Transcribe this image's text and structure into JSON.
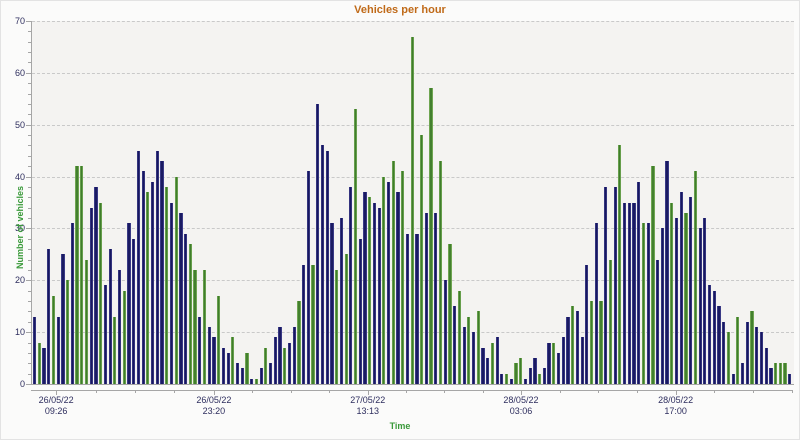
{
  "chart_data": {
    "type": "bar",
    "title": "Vehicles per hour",
    "xlabel": "Time",
    "ylabel": "Number of vehicles",
    "ylim": [
      0,
      70
    ],
    "grid": "horizontal-dashed",
    "legend": "none",
    "y_ticks": [
      0,
      10,
      20,
      30,
      40,
      50,
      60,
      70
    ],
    "y_minor_step": 2,
    "x_ticks": [
      {
        "pos": 0.033,
        "label_line1": "26/05/22",
        "label_line2": "09:26"
      },
      {
        "pos": 0.24,
        "label_line1": "26/05/22",
        "label_line2": "23:20"
      },
      {
        "pos": 0.442,
        "label_line1": "27/05/22",
        "label_line2": "13:13"
      },
      {
        "pos": 0.643,
        "label_line1": "28/05/22",
        "label_line2": "03:06"
      },
      {
        "pos": 0.846,
        "label_line1": "28/05/22",
        "label_line2": "17:00"
      }
    ],
    "series_legend": {
      "n": "navy bars",
      "g": "green bars"
    },
    "bars": [
      [
        13,
        "n"
      ],
      [
        8,
        "g"
      ],
      [
        7,
        "n"
      ],
      [
        26,
        "n"
      ],
      [
        17,
        "g"
      ],
      [
        13,
        "n"
      ],
      [
        25,
        "n"
      ],
      [
        20,
        "g"
      ],
      [
        31,
        "n"
      ],
      [
        42,
        "g"
      ],
      [
        42,
        "g"
      ],
      [
        24,
        "g"
      ],
      [
        34,
        "n"
      ],
      [
        38,
        "n"
      ],
      [
        35,
        "g"
      ],
      [
        19,
        "n"
      ],
      [
        26,
        "n"
      ],
      [
        13,
        "g"
      ],
      [
        22,
        "n"
      ],
      [
        18,
        "g"
      ],
      [
        31,
        "n"
      ],
      [
        28,
        "n"
      ],
      [
        45,
        "n"
      ],
      [
        41,
        "n"
      ],
      [
        37,
        "g"
      ],
      [
        39,
        "n"
      ],
      [
        45,
        "n"
      ],
      [
        43,
        "n"
      ],
      [
        38,
        "g"
      ],
      [
        35,
        "n"
      ],
      [
        40,
        "g"
      ],
      [
        33,
        "n"
      ],
      [
        29,
        "n"
      ],
      [
        27,
        "g"
      ],
      [
        22,
        "g"
      ],
      [
        13,
        "n"
      ],
      [
        22,
        "g"
      ],
      [
        11,
        "n"
      ],
      [
        9,
        "n"
      ],
      [
        17,
        "g"
      ],
      [
        7,
        "n"
      ],
      [
        6,
        "n"
      ],
      [
        9,
        "g"
      ],
      [
        4,
        "n"
      ],
      [
        3,
        "n"
      ],
      [
        6,
        "g"
      ],
      [
        1,
        "n"
      ],
      [
        1,
        "g"
      ],
      [
        3,
        "n"
      ],
      [
        7,
        "g"
      ],
      [
        4,
        "n"
      ],
      [
        9,
        "n"
      ],
      [
        11,
        "n"
      ],
      [
        7,
        "g"
      ],
      [
        8,
        "n"
      ],
      [
        11,
        "n"
      ],
      [
        16,
        "g"
      ],
      [
        23,
        "n"
      ],
      [
        41,
        "n"
      ],
      [
        23,
        "g"
      ],
      [
        54,
        "n"
      ],
      [
        46,
        "n"
      ],
      [
        45,
        "n"
      ],
      [
        31,
        "n"
      ],
      [
        22,
        "g"
      ],
      [
        32,
        "n"
      ],
      [
        25,
        "g"
      ],
      [
        38,
        "n"
      ],
      [
        53,
        "g"
      ],
      [
        28,
        "n"
      ],
      [
        37,
        "n"
      ],
      [
        36,
        "g"
      ],
      [
        35,
        "n"
      ],
      [
        34,
        "n"
      ],
      [
        40,
        "g"
      ],
      [
        39,
        "n"
      ],
      [
        43,
        "g"
      ],
      [
        37,
        "n"
      ],
      [
        41,
        "g"
      ],
      [
        29,
        "n"
      ],
      [
        67,
        "g"
      ],
      [
        29,
        "n"
      ],
      [
        48,
        "g"
      ],
      [
        33,
        "n"
      ],
      [
        57,
        "g"
      ],
      [
        33,
        "n"
      ],
      [
        43,
        "g"
      ],
      [
        20,
        "n"
      ],
      [
        27,
        "g"
      ],
      [
        15,
        "n"
      ],
      [
        18,
        "g"
      ],
      [
        11,
        "n"
      ],
      [
        13,
        "g"
      ],
      [
        10,
        "n"
      ],
      [
        14,
        "g"
      ],
      [
        7,
        "n"
      ],
      [
        5,
        "n"
      ],
      [
        8,
        "g"
      ],
      [
        9,
        "n"
      ],
      [
        2,
        "n"
      ],
      [
        2,
        "g"
      ],
      [
        1,
        "n"
      ],
      [
        4,
        "g"
      ],
      [
        5,
        "g"
      ],
      [
        1,
        "n"
      ],
      [
        3,
        "n"
      ],
      [
        5,
        "n"
      ],
      [
        2,
        "g"
      ],
      [
        3,
        "n"
      ],
      [
        8,
        "n"
      ],
      [
        8,
        "g"
      ],
      [
        6,
        "n"
      ],
      [
        9,
        "n"
      ],
      [
        13,
        "n"
      ],
      [
        15,
        "g"
      ],
      [
        14,
        "n"
      ],
      [
        9,
        "n"
      ],
      [
        23,
        "n"
      ],
      [
        16,
        "g"
      ],
      [
        31,
        "n"
      ],
      [
        16,
        "g"
      ],
      [
        38,
        "n"
      ],
      [
        24,
        "g"
      ],
      [
        38,
        "n"
      ],
      [
        46,
        "g"
      ],
      [
        35,
        "n"
      ],
      [
        35,
        "n"
      ],
      [
        35,
        "n"
      ],
      [
        39,
        "n"
      ],
      [
        31,
        "g"
      ],
      [
        31,
        "n"
      ],
      [
        42,
        "g"
      ],
      [
        24,
        "n"
      ],
      [
        30,
        "n"
      ],
      [
        43,
        "n"
      ],
      [
        35,
        "g"
      ],
      [
        32,
        "n"
      ],
      [
        37,
        "n"
      ],
      [
        33,
        "g"
      ],
      [
        36,
        "n"
      ],
      [
        41,
        "g"
      ],
      [
        30,
        "n"
      ],
      [
        32,
        "n"
      ],
      [
        19,
        "n"
      ],
      [
        18,
        "n"
      ],
      [
        15,
        "n"
      ],
      [
        12,
        "n"
      ],
      [
        10,
        "g"
      ],
      [
        2,
        "n"
      ],
      [
        13,
        "g"
      ],
      [
        4,
        "n"
      ],
      [
        12,
        "n"
      ],
      [
        14,
        "g"
      ],
      [
        11,
        "n"
      ],
      [
        10,
        "n"
      ],
      [
        7,
        "n"
      ],
      [
        3,
        "n"
      ],
      [
        4,
        "g"
      ],
      [
        4,
        "g"
      ],
      [
        4,
        "g"
      ],
      [
        2,
        "n"
      ]
    ]
  },
  "colors": {
    "title": "#c06a18",
    "axis_title": "#3a9a3a",
    "tick_label": "#2e2e5e",
    "bar_navy": "#17175f",
    "bar_navy_edge": "#4c4c9a",
    "bar_green": "#3f7d2b",
    "bar_green_edge": "#8abb68",
    "plot_bg": "#f4f3f1",
    "grid": "#c9c9c9",
    "axis_line": "#a6a6a6",
    "page_bg": "#fbfbfa"
  }
}
